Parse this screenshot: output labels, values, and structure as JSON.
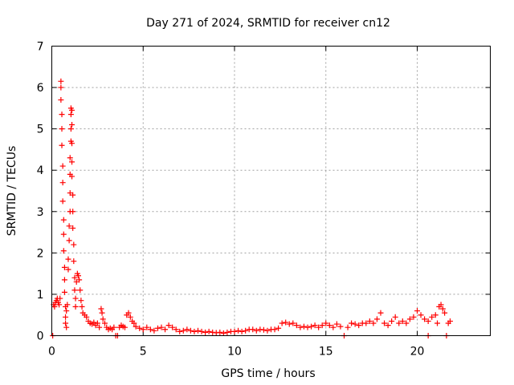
{
  "chart_data": {
    "type": "scatter",
    "title": "Day 271 of 2024, SRMTID for receiver cn12",
    "xlabel": "GPS time / hours",
    "ylabel": "SRMTID / TECUs",
    "xlim": [
      0,
      24
    ],
    "ylim": [
      0,
      7
    ],
    "xticks": [
      0,
      5,
      10,
      15,
      20
    ],
    "yticks": [
      0,
      1,
      2,
      3,
      4,
      5,
      6,
      7
    ],
    "grid": true,
    "marker": "+",
    "color": "#ff0000",
    "series": [
      {
        "name": "SRMTID",
        "points": [
          [
            0.05,
            0.0
          ],
          [
            0.1,
            0.75
          ],
          [
            0.15,
            0.7
          ],
          [
            0.2,
            0.8
          ],
          [
            0.25,
            0.85
          ],
          [
            0.3,
            0.9
          ],
          [
            0.35,
            0.8
          ],
          [
            0.4,
            0.75
          ],
          [
            0.45,
            0.9
          ],
          [
            0.5,
            6.15
          ],
          [
            0.5,
            6.0
          ],
          [
            0.5,
            5.7
          ],
          [
            0.55,
            5.35
          ],
          [
            0.55,
            5.0
          ],
          [
            0.55,
            4.6
          ],
          [
            0.6,
            4.1
          ],
          [
            0.6,
            3.7
          ],
          [
            0.6,
            3.25
          ],
          [
            0.65,
            2.8
          ],
          [
            0.65,
            2.45
          ],
          [
            0.65,
            2.05
          ],
          [
            0.7,
            1.65
          ],
          [
            0.7,
            1.35
          ],
          [
            0.7,
            1.05
          ],
          [
            0.75,
            0.7
          ],
          [
            0.75,
            0.45
          ],
          [
            0.75,
            0.3
          ],
          [
            0.8,
            0.2
          ],
          [
            0.8,
            0.6
          ],
          [
            0.85,
            0.75
          ],
          [
            0.9,
            1.6
          ],
          [
            0.9,
            1.85
          ],
          [
            0.95,
            2.3
          ],
          [
            0.95,
            2.65
          ],
          [
            1.0,
            3.0
          ],
          [
            1.0,
            3.45
          ],
          [
            1.0,
            3.9
          ],
          [
            1.0,
            4.3
          ],
          [
            1.05,
            4.7
          ],
          [
            1.05,
            5.0
          ],
          [
            1.05,
            5.35
          ],
          [
            1.05,
            5.5
          ],
          [
            1.1,
            5.45
          ],
          [
            1.1,
            5.1
          ],
          [
            1.1,
            4.65
          ],
          [
            1.1,
            4.2
          ],
          [
            1.1,
            3.85
          ],
          [
            1.15,
            3.4
          ],
          [
            1.15,
            3.0
          ],
          [
            1.15,
            2.6
          ],
          [
            1.2,
            2.2
          ],
          [
            1.2,
            1.8
          ],
          [
            1.25,
            1.4
          ],
          [
            1.25,
            1.1
          ],
          [
            1.3,
            0.9
          ],
          [
            1.3,
            0.7
          ],
          [
            1.35,
            1.3
          ],
          [
            1.4,
            1.5
          ],
          [
            1.45,
            1.45
          ],
          [
            1.5,
            1.35
          ],
          [
            1.55,
            1.1
          ],
          [
            1.6,
            0.85
          ],
          [
            1.65,
            0.7
          ],
          [
            1.7,
            0.55
          ],
          [
            1.8,
            0.5
          ],
          [
            1.9,
            0.45
          ],
          [
            2.0,
            0.35
          ],
          [
            2.1,
            0.3
          ],
          [
            2.2,
            0.28
          ],
          [
            2.3,
            0.32
          ],
          [
            2.4,
            0.25
          ],
          [
            2.5,
            0.3
          ],
          [
            2.6,
            0.2
          ],
          [
            2.7,
            0.65
          ],
          [
            2.75,
            0.55
          ],
          [
            2.8,
            0.4
          ],
          [
            2.9,
            0.3
          ],
          [
            3.0,
            0.2
          ],
          [
            3.1,
            0.15
          ],
          [
            3.2,
            0.18
          ],
          [
            3.3,
            0.15
          ],
          [
            3.4,
            0.2
          ],
          [
            3.5,
            0.0
          ],
          [
            3.6,
            0.0
          ],
          [
            3.7,
            0.2
          ],
          [
            3.8,
            0.25
          ],
          [
            3.9,
            0.22
          ],
          [
            4.0,
            0.2
          ],
          [
            4.1,
            0.5
          ],
          [
            4.2,
            0.55
          ],
          [
            4.3,
            0.45
          ],
          [
            4.4,
            0.35
          ],
          [
            4.5,
            0.3
          ],
          [
            4.6,
            0.22
          ],
          [
            4.8,
            0.18
          ],
          [
            5.0,
            0.15
          ],
          [
            5.2,
            0.2
          ],
          [
            5.4,
            0.15
          ],
          [
            5.6,
            0.12
          ],
          [
            5.8,
            0.18
          ],
          [
            6.0,
            0.2
          ],
          [
            6.2,
            0.15
          ],
          [
            6.4,
            0.25
          ],
          [
            6.6,
            0.2
          ],
          [
            6.8,
            0.15
          ],
          [
            7.0,
            0.1
          ],
          [
            7.2,
            0.12
          ],
          [
            7.4,
            0.15
          ],
          [
            7.6,
            0.12
          ],
          [
            7.8,
            0.1
          ],
          [
            8.0,
            0.12
          ],
          [
            8.2,
            0.1
          ],
          [
            8.4,
            0.08
          ],
          [
            8.6,
            0.1
          ],
          [
            8.8,
            0.08
          ],
          [
            9.0,
            0.07
          ],
          [
            9.2,
            0.08
          ],
          [
            9.4,
            0.06
          ],
          [
            9.6,
            0.08
          ],
          [
            9.8,
            0.1
          ],
          [
            10.0,
            0.1
          ],
          [
            10.2,
            0.12
          ],
          [
            10.4,
            0.1
          ],
          [
            10.6,
            0.12
          ],
          [
            10.8,
            0.15
          ],
          [
            11.0,
            0.15
          ],
          [
            11.2,
            0.12
          ],
          [
            11.4,
            0.15
          ],
          [
            11.6,
            0.14
          ],
          [
            11.8,
            0.12
          ],
          [
            12.0,
            0.15
          ],
          [
            12.2,
            0.15
          ],
          [
            12.4,
            0.18
          ],
          [
            12.6,
            0.3
          ],
          [
            12.8,
            0.32
          ],
          [
            13.0,
            0.28
          ],
          [
            13.2,
            0.3
          ],
          [
            13.4,
            0.25
          ],
          [
            13.6,
            0.2
          ],
          [
            13.8,
            0.22
          ],
          [
            14.0,
            0.2
          ],
          [
            14.2,
            0.22
          ],
          [
            14.4,
            0.25
          ],
          [
            14.6,
            0.2
          ],
          [
            14.8,
            0.25
          ],
          [
            15.0,
            0.3
          ],
          [
            15.2,
            0.25
          ],
          [
            15.4,
            0.2
          ],
          [
            15.6,
            0.28
          ],
          [
            15.8,
            0.22
          ],
          [
            16.0,
            0.0
          ],
          [
            16.2,
            0.2
          ],
          [
            16.4,
            0.3
          ],
          [
            16.6,
            0.28
          ],
          [
            16.8,
            0.25
          ],
          [
            17.0,
            0.3
          ],
          [
            17.2,
            0.3
          ],
          [
            17.4,
            0.35
          ],
          [
            17.6,
            0.3
          ],
          [
            17.8,
            0.4
          ],
          [
            18.0,
            0.55
          ],
          [
            18.2,
            0.3
          ],
          [
            18.4,
            0.25
          ],
          [
            18.6,
            0.35
          ],
          [
            18.8,
            0.45
          ],
          [
            19.0,
            0.3
          ],
          [
            19.2,
            0.35
          ],
          [
            19.4,
            0.3
          ],
          [
            19.6,
            0.4
          ],
          [
            19.8,
            0.45
          ],
          [
            20.0,
            0.6
          ],
          [
            20.2,
            0.5
          ],
          [
            20.4,
            0.4
          ],
          [
            20.6,
            0.35
          ],
          [
            20.6,
            0.0
          ],
          [
            20.8,
            0.45
          ],
          [
            21.0,
            0.5
          ],
          [
            21.1,
            0.3
          ],
          [
            21.2,
            0.7
          ],
          [
            21.3,
            0.75
          ],
          [
            21.4,
            0.65
          ],
          [
            21.5,
            0.55
          ],
          [
            21.6,
            0.0
          ],
          [
            21.7,
            0.3
          ],
          [
            21.8,
            0.35
          ]
        ]
      }
    ]
  }
}
